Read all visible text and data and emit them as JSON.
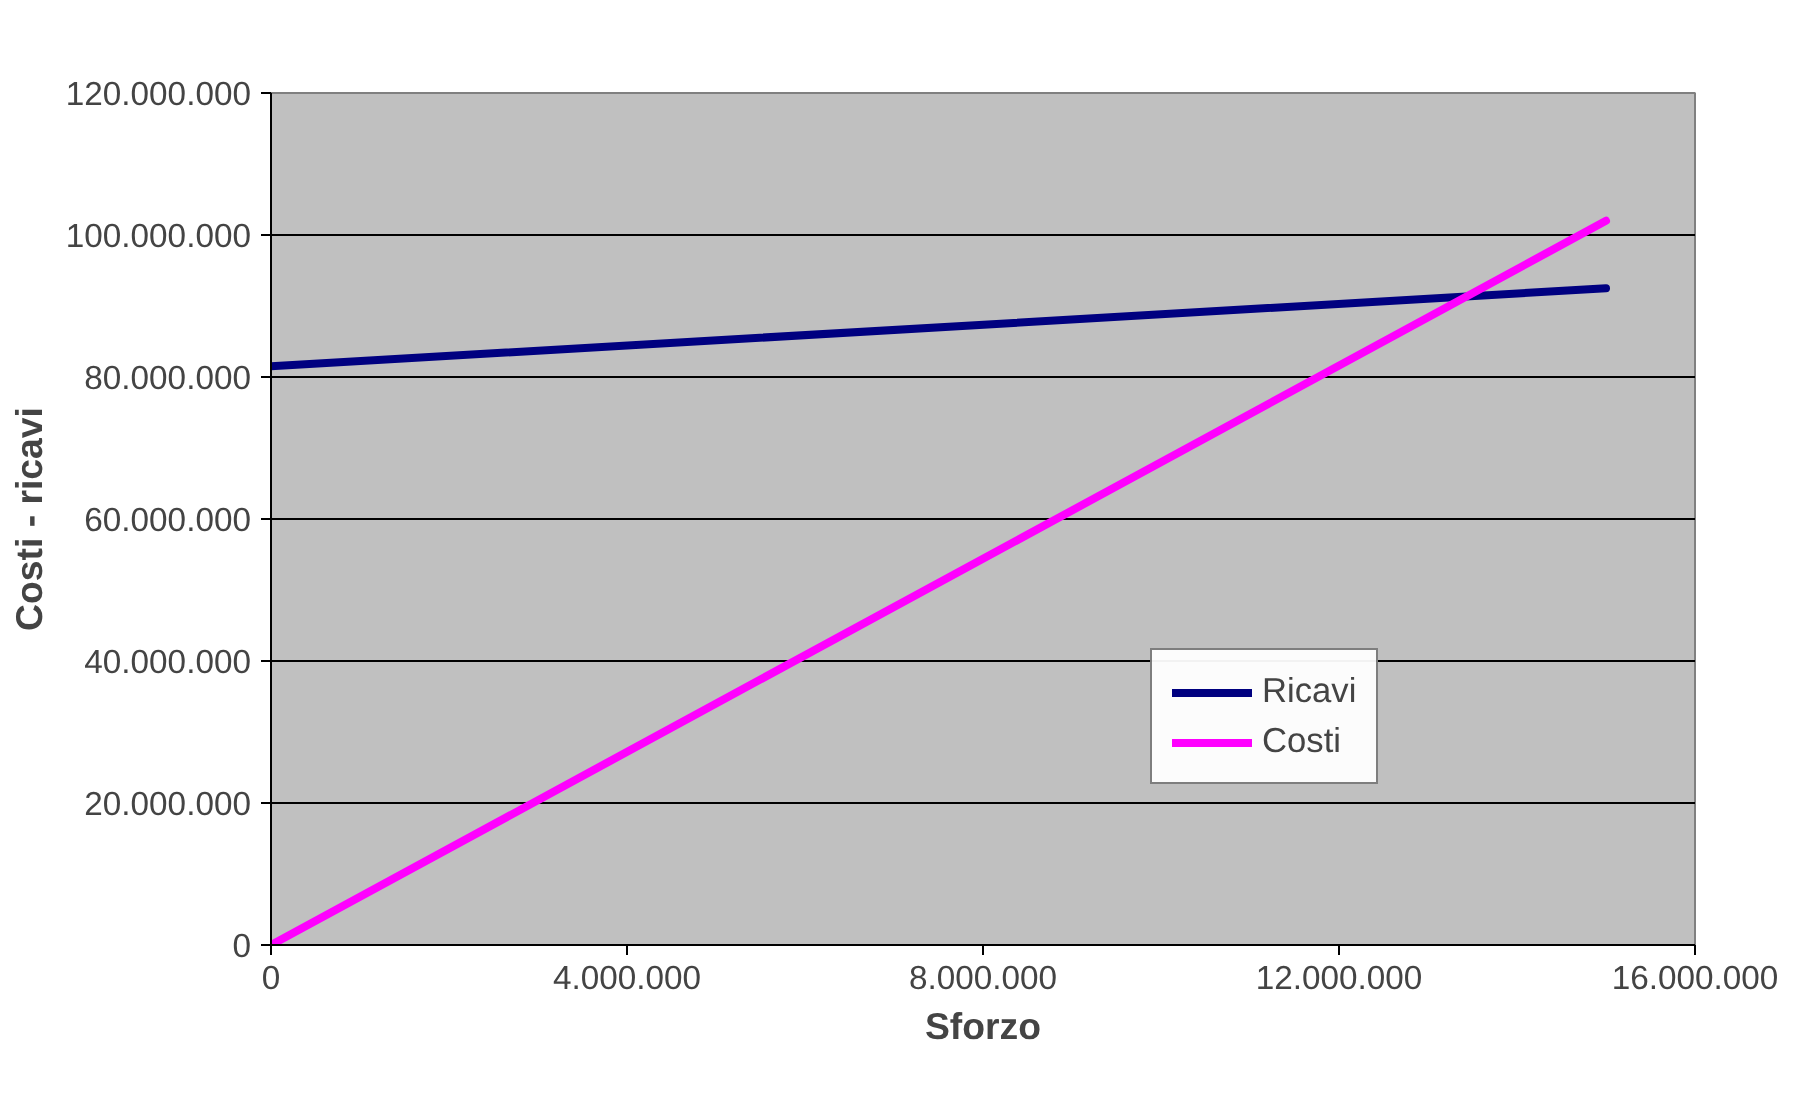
{
  "chart_data": {
    "type": "line",
    "xlabel": "Sforzo",
    "ylabel": "Costi - ricavi",
    "x": [
      0,
      15000000
    ],
    "series": [
      {
        "name": "Ricavi",
        "color": "#000080",
        "values": [
          81500000,
          92500000
        ]
      },
      {
        "name": "Costi",
        "color": "#ff00ff",
        "values": [
          0,
          102000000
        ]
      }
    ],
    "xlim": [
      0,
      16000000
    ],
    "xticks": [
      {
        "value": 0,
        "label": "0"
      },
      {
        "value": 4000000,
        "label": "4.000.000"
      },
      {
        "value": 8000000,
        "label": "8.000.000"
      },
      {
        "value": 12000000,
        "label": "12.000.000"
      },
      {
        "value": 16000000,
        "label": "16.000.000"
      }
    ],
    "ylim": [
      0,
      120000000
    ],
    "yticks": [
      {
        "value": 0,
        "label": "0"
      },
      {
        "value": 20000000,
        "label": "20.000.000"
      },
      {
        "value": 40000000,
        "label": "40.000.000"
      },
      {
        "value": 60000000,
        "label": "60.000.000"
      },
      {
        "value": 80000000,
        "label": "80.000.000"
      },
      {
        "value": 100000000,
        "label": "100.000.000"
      },
      {
        "value": 120000000,
        "label": "120.000.000"
      }
    ],
    "grid": "y",
    "legend": "right",
    "marker": "none",
    "line_style": "solid"
  }
}
